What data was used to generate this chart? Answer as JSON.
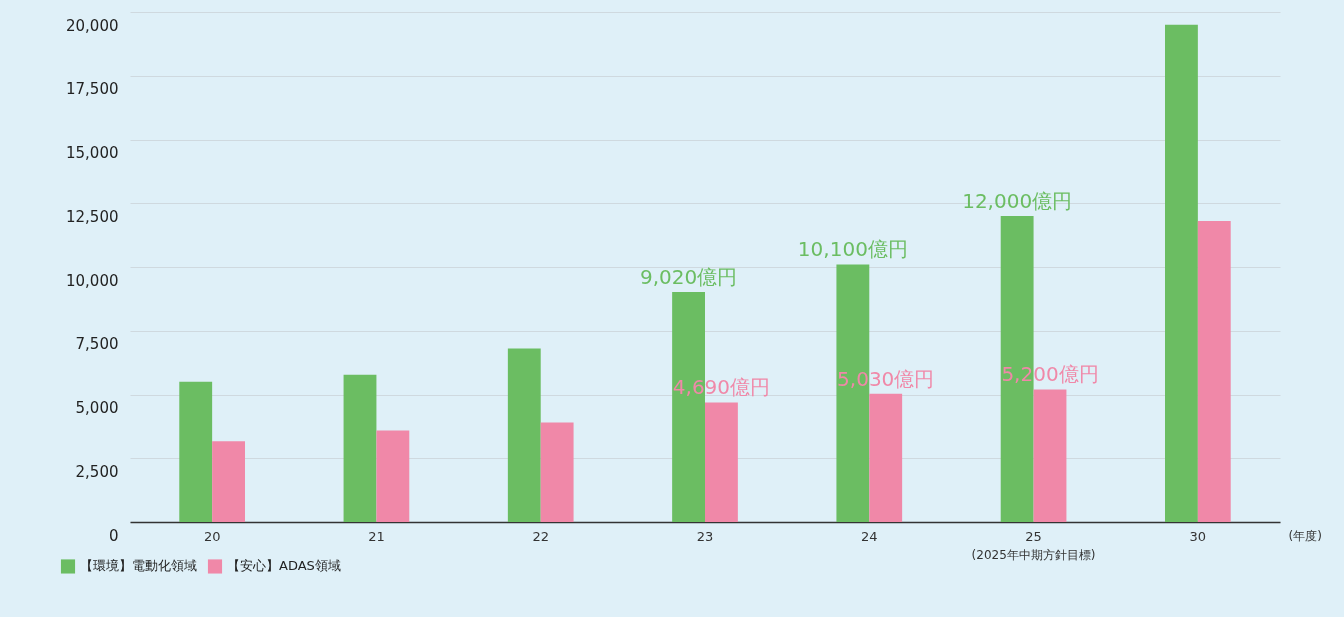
{
  "chart_data": {
    "type": "bar",
    "categories": [
      "20",
      "21",
      "22",
      "23",
      "24",
      "25",
      "30"
    ],
    "xlabel": "(年度)",
    "series": [
      {
        "name": "【環境】電動化領域",
        "color": "#6bbd62",
        "values": [
          5500,
          5770,
          6800,
          9020,
          10100,
          12000,
          19500
        ],
        "value_labels": [
          null,
          null,
          null,
          "9,020億円",
          "10,100億円",
          "12,000億円",
          null
        ]
      },
      {
        "name": "【安心】ADAS領域",
        "color": "#f088a8",
        "values": [
          3170,
          3590,
          3900,
          4690,
          5030,
          5200,
          11800
        ],
        "value_labels": [
          null,
          null,
          null,
          "4,690億円",
          "5,030億円",
          "5,200億円",
          null
        ]
      }
    ],
    "annotations": [
      "(2025年中期方針目標)"
    ],
    "ylim": [
      0,
      20000
    ],
    "yticks": [
      0,
      {
        "value": 2500,
        "label": "2,500"
      },
      {
        "value": 5000,
        "label": "5,000"
      },
      {
        "value": 7500,
        "label": "7,500"
      },
      {
        "value": 10000,
        "label": "10,000"
      },
      {
        "value": 12500,
        "label": "12,500"
      },
      {
        "value": 15000,
        "label": "15,000"
      },
      {
        "value": 17500,
        "label": "17,500"
      },
      {
        "value": 20000,
        "label": "20,000"
      }
    ],
    "grid": "y",
    "legend": "bottom left"
  }
}
